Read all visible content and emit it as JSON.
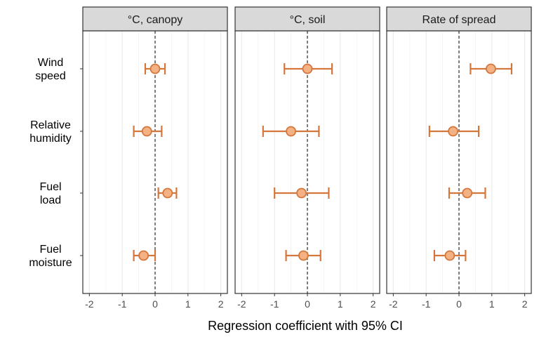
{
  "chart_data": {
    "type": "scatter",
    "subtype": "forest-plot-faceted",
    "xlabel": "Regression coefficient with 95% CI",
    "xlim": [
      -2.2,
      2.2
    ],
    "xticks": [
      -2,
      -1,
      0,
      1,
      2
    ],
    "xtick_labels": [
      "-2",
      "-1",
      "0",
      "1",
      "2"
    ],
    "reference_line": 0,
    "grid": true,
    "legend": "none",
    "colors": {
      "point_fill": "#F4B183",
      "point_stroke": "#D4773D",
      "errorbar": "#D4773D",
      "strip_fill": "#D9D9D9",
      "grid": "#EBEBEB",
      "panel_border": "#333333"
    },
    "categories": [
      [
        "Wind",
        "speed"
      ],
      [
        "Relative",
        "humidity"
      ],
      [
        "Fuel",
        "load"
      ],
      [
        "Fuel",
        "moisture"
      ]
    ],
    "panels": [
      {
        "title": "°C, canopy",
        "points": [
          {
            "estimate": 0.0,
            "lower": -0.3,
            "upper": 0.3
          },
          {
            "estimate": -0.25,
            "lower": -0.65,
            "upper": 0.2
          },
          {
            "estimate": 0.38,
            "lower": 0.1,
            "upper": 0.65
          },
          {
            "estimate": -0.35,
            "lower": -0.65,
            "upper": 0.0
          }
        ]
      },
      {
        "title": "°C, soil",
        "points": [
          {
            "estimate": 0.0,
            "lower": -0.7,
            "upper": 0.75
          },
          {
            "estimate": -0.5,
            "lower": -1.35,
            "upper": 0.35
          },
          {
            "estimate": -0.18,
            "lower": -1.0,
            "upper": 0.65
          },
          {
            "estimate": -0.12,
            "lower": -0.65,
            "upper": 0.4
          }
        ]
      },
      {
        "title": "Rate of spread",
        "points": [
          {
            "estimate": 0.97,
            "lower": 0.35,
            "upper": 1.6
          },
          {
            "estimate": -0.18,
            "lower": -0.9,
            "upper": 0.6
          },
          {
            "estimate": 0.25,
            "lower": -0.3,
            "upper": 0.8
          },
          {
            "estimate": -0.28,
            "lower": -0.75,
            "upper": 0.2
          }
        ]
      }
    ]
  }
}
